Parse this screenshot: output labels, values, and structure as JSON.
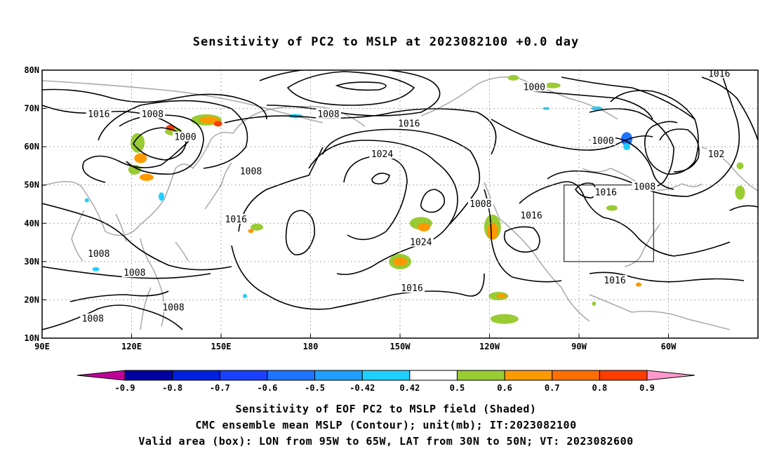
{
  "title": "Sensitivity of PC2 to MSLP at 2023082100 +0.0 day",
  "map": {
    "lon_labels": [
      "90E",
      "120E",
      "150E",
      "180",
      "150W",
      "120W",
      "90W",
      "60W"
    ],
    "lat_labels": [
      "80N",
      "70N",
      "60N",
      "50N",
      "40N",
      "30N",
      "20N",
      "10N"
    ],
    "contour_labels": [
      {
        "text": "1016",
        "lon": 109,
        "lat": 68.5
      },
      {
        "text": "1008",
        "lon": 127,
        "lat": 68.5
      },
      {
        "text": "1000",
        "lon": 138,
        "lat": 62.5
      },
      {
        "text": "1008",
        "lon": 186,
        "lat": 68.5
      },
      {
        "text": "1016",
        "lon": 213,
        "lat": 66
      },
      {
        "text": "1024",
        "lon": 204,
        "lat": 58
      },
      {
        "text": "1008",
        "lon": 160,
        "lat": 53.5
      },
      {
        "text": "1016",
        "lon": 155,
        "lat": 41
      },
      {
        "text": "1024",
        "lon": 217,
        "lat": 35
      },
      {
        "text": "1016",
        "lon": 214,
        "lat": 23
      },
      {
        "text": "1008",
        "lon": 109,
        "lat": 32
      },
      {
        "text": "1008",
        "lon": 121,
        "lat": 27
      },
      {
        "text": "1008",
        "lon": 134,
        "lat": 18
      },
      {
        "text": "1008",
        "lon": 107,
        "lat": 15
      },
      {
        "text": "1008",
        "lon": 237,
        "lat": 45
      },
      {
        "text": "1016",
        "lon": 254,
        "lat": 42
      },
      {
        "text": "1000",
        "lon": 255,
        "lat": 75.5
      },
      {
        "text": "1000",
        "lon": 278,
        "lat": 61.5
      },
      {
        "text": "1016",
        "lon": 279,
        "lat": 48
      },
      {
        "text": "1008",
        "lon": 292,
        "lat": 49.5
      },
      {
        "text": "1016",
        "lon": 282,
        "lat": 25
      },
      {
        "text": "1016",
        "lon": 317,
        "lat": 79
      },
      {
        "text": "102",
        "lon": 316,
        "lat": 58
      }
    ],
    "valid_box": {
      "lon_min": 265,
      "lon_max": 295,
      "lat_min": 30,
      "lat_max": 50
    }
  },
  "colorbar": {
    "labels": [
      "-0.9",
      "-0.8",
      "-0.7",
      "-0.6",
      "-0.5",
      "-0.42",
      "0.42",
      "0.5",
      "0.6",
      "0.7",
      "0.8",
      "0.9"
    ],
    "colors": [
      "#bf0099",
      "#0000a0",
      "#0020e0",
      "#1a40ff",
      "#1e74ff",
      "#1fa0ff",
      "#1fcfff",
      "#ffffff",
      "#99cc33",
      "#ff9900",
      "#ff6e00",
      "#ff3c00",
      "#ff0000",
      "#ff99cc"
    ],
    "neg_end_color": "#bf0099",
    "pos_end_color": "#ff99cc"
  },
  "footer": {
    "line1": "Sensitivity of EOF PC2 to MSLP field (Shaded)",
    "line2": "CMC ensemble mean MSLP (Contour); unit(mb); IT:2023082100",
    "line3": "Valid area (box): LON from 95W to 65W, LAT from 30N to 50N; VT: 2023082600"
  },
  "colors": {
    "coast": "#a9a9a9",
    "contour": "#000000",
    "grid": "#8c8c8c"
  }
}
